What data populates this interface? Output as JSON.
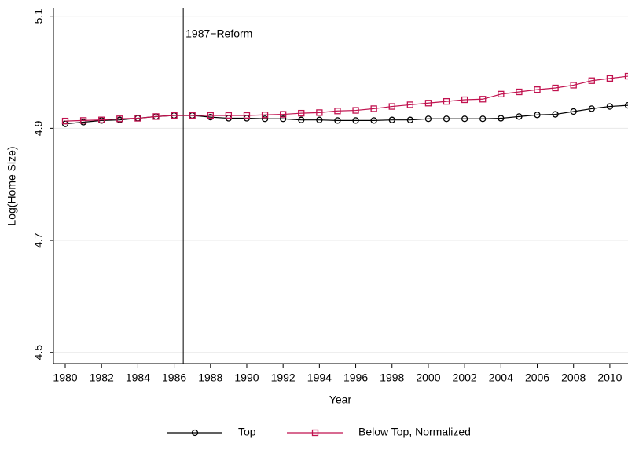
{
  "chart_data": {
    "type": "line",
    "x_label": "Year",
    "y_label": "Log(Home Size)",
    "x": [
      1980,
      1981,
      1982,
      1983,
      1984,
      1985,
      1986,
      1987,
      1988,
      1989,
      1990,
      1991,
      1992,
      1993,
      1994,
      1995,
      1996,
      1997,
      1998,
      1999,
      2000,
      2001,
      2002,
      2003,
      2004,
      2005,
      2006,
      2007,
      2008,
      2009,
      2010,
      2011
    ],
    "series": [
      {
        "name": "Top",
        "color": "#000000",
        "marker": "circle",
        "values": [
          4.908,
          4.911,
          4.914,
          4.915,
          4.918,
          4.921,
          4.923,
          4.923,
          4.92,
          4.918,
          4.918,
          4.917,
          4.917,
          4.915,
          4.915,
          4.914,
          4.914,
          4.914,
          4.915,
          4.915,
          4.917,
          4.917,
          4.917,
          4.917,
          4.918,
          4.921,
          4.924,
          4.925,
          4.93,
          4.935,
          4.939,
          4.941
        ]
      },
      {
        "name": "Below Top, Normalized",
        "color": "#c1124f",
        "marker": "square",
        "values": [
          4.913,
          4.914,
          4.915,
          4.917,
          4.918,
          4.921,
          4.923,
          4.923,
          4.923,
          4.923,
          4.923,
          4.924,
          4.925,
          4.927,
          4.928,
          4.931,
          4.932,
          4.935,
          4.939,
          4.942,
          4.945,
          4.948,
          4.951,
          4.952,
          4.961,
          4.965,
          4.969,
          4.972,
          4.977,
          4.985,
          4.989,
          4.993
        ]
      }
    ],
    "xlim": [
      1979.35,
      2011
    ],
    "xticks": [
      1980,
      1982,
      1984,
      1986,
      1988,
      1990,
      1992,
      1994,
      1996,
      1998,
      2000,
      2002,
      2004,
      2006,
      2008,
      2010
    ],
    "ylim": [
      4.48,
      5.115
    ],
    "yticks": [
      4.5,
      4.7,
      4.9,
      5.1
    ],
    "grid": true,
    "reference_line": {
      "x": 1986.5,
      "label": "1987−Reform"
    },
    "legend": "bottom"
  }
}
